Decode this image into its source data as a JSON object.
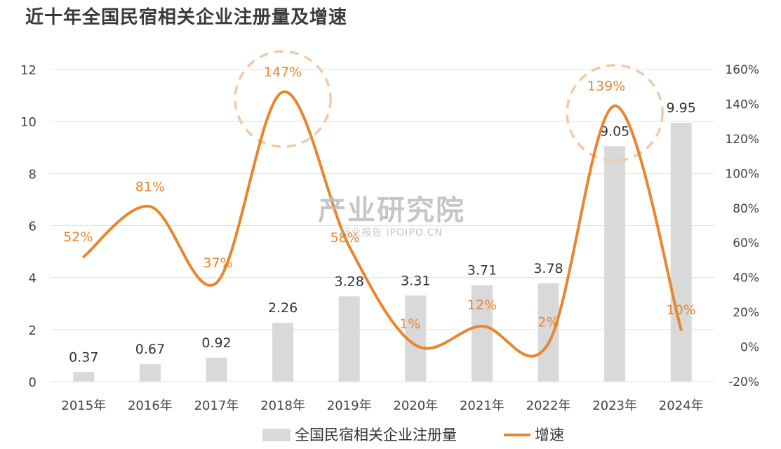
{
  "chart_data": {
    "type": "bar",
    "title": "近十年全国民宿相关企业注册量及增速",
    "categories": [
      "2015年",
      "2016年",
      "2017年",
      "2018年",
      "2019年",
      "2020年",
      "2021年",
      "2022年",
      "2023年",
      "2024年"
    ],
    "series": [
      {
        "name": "全国民宿相关企业注册量",
        "type": "bar",
        "axis": "left",
        "color": "#d9d9d9",
        "values": [
          0.37,
          0.67,
          0.92,
          2.26,
          3.28,
          3.31,
          3.71,
          3.78,
          9.05,
          9.95
        ],
        "labels": [
          "0.37",
          "0.67",
          "0.92",
          "2.26",
          "3.28",
          "3.31",
          "3.71",
          "3.78",
          "9.05",
          "9.95"
        ]
      },
      {
        "name": "增速",
        "type": "line",
        "smooth": true,
        "axis": "right",
        "color": "#e8862f",
        "values": [
          52,
          81,
          37,
          147,
          58,
          1,
          12,
          2,
          139,
          10
        ],
        "labels": [
          "52%",
          "81%",
          "37%",
          "147%",
          "58%",
          "1%",
          "12%",
          "2%",
          "139%",
          "10%"
        ]
      }
    ],
    "y_left": {
      "ylim": [
        0,
        12
      ],
      "ticks": [
        "0",
        "2",
        "4",
        "6",
        "8",
        "10",
        "12"
      ]
    },
    "y_right": {
      "ylim": [
        -20,
        160
      ],
      "ticks": [
        "-20%",
        "0%",
        "20%",
        "40%",
        "60%",
        "80%",
        "100%",
        "120%",
        "140%",
        "160%"
      ]
    },
    "grid": true,
    "legend": "bottom",
    "highlights": [
      "2018年",
      "2023年"
    ]
  },
  "watermark": {
    "main": "产业研究院",
    "sub": "行业报告 IPOIPO.CN"
  }
}
